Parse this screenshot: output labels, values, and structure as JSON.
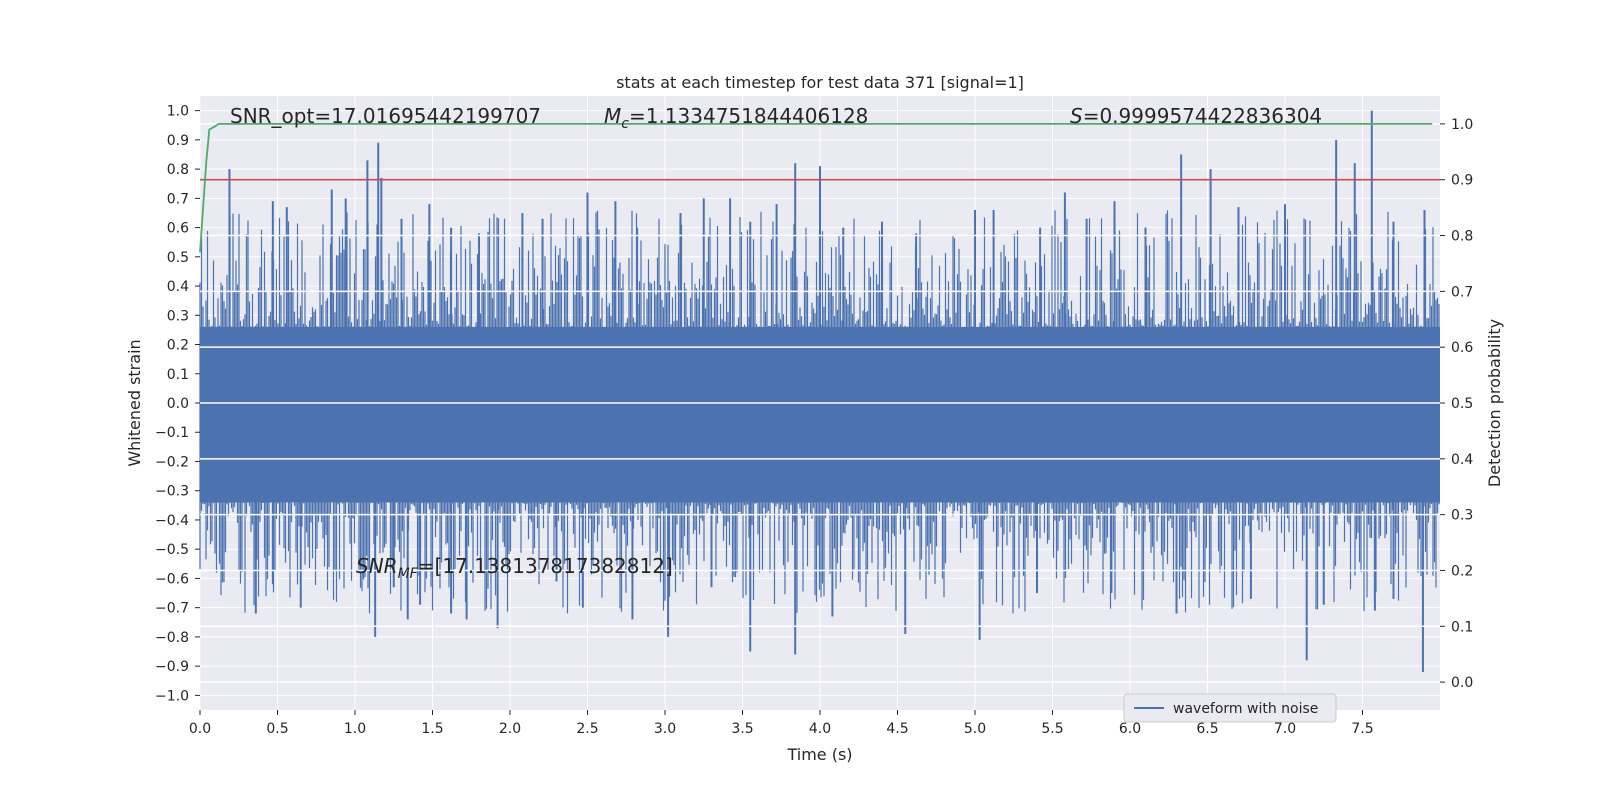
{
  "chart_data": {
    "type": "line",
    "title": "stats at each timestep for test data 371 [signal=1]",
    "xlabel": "Time (s)",
    "ylabel": "Whitened strain",
    "y2label": "Detection probability",
    "xlim": [
      0.0,
      8.0
    ],
    "ylim": [
      -1.05,
      1.05
    ],
    "y2lim": [
      -0.05,
      1.05
    ],
    "x_ticks": [
      0.0,
      0.5,
      1.0,
      1.5,
      2.0,
      2.5,
      3.0,
      3.5,
      4.0,
      4.5,
      5.0,
      5.5,
      6.0,
      6.5,
      7.0,
      7.5
    ],
    "x_tick_labels": [
      "0.0",
      "0.5",
      "1.0",
      "1.5",
      "2.0",
      "2.5",
      "3.0",
      "3.5",
      "4.0",
      "4.5",
      "5.0",
      "5.5",
      "6.0",
      "6.5",
      "7.0",
      "7.5"
    ],
    "y_ticks": [
      1.0,
      0.9,
      0.8,
      0.7,
      0.6,
      0.5,
      0.4,
      0.3,
      0.2,
      0.1,
      0.0,
      -0.1,
      -0.2,
      -0.3,
      -0.4,
      -0.5,
      -0.6,
      -0.7,
      -0.8,
      -0.9,
      -1.0
    ],
    "y_tick_labels": [
      "1.0",
      "0.9",
      "0.8",
      "0.7",
      "0.6",
      "0.5",
      "0.4",
      "0.3",
      "0.2",
      "0.1",
      "0.0",
      "−0.1",
      "−0.2",
      "−0.3",
      "−0.4",
      "−0.5",
      "−0.6",
      "−0.7",
      "−0.8",
      "−0.9",
      "−1.0"
    ],
    "y2_ticks": [
      1.0,
      0.9,
      0.8,
      0.7,
      0.6,
      0.5,
      0.4,
      0.3,
      0.2,
      0.1,
      0.0
    ],
    "y2_tick_labels": [
      "1.0",
      "0.9",
      "0.8",
      "0.7",
      "0.6",
      "0.5",
      "0.4",
      "0.3",
      "0.2",
      "0.1",
      "0.0"
    ],
    "grid": true,
    "legend": {
      "placement": "lower-right",
      "entries": [
        "waveform with noise"
      ]
    },
    "series": [
      {
        "name": "waveform with noise",
        "color": "#4c72b0",
        "axis": "left",
        "band_lower": -0.34,
        "band_upper": 0.26,
        "peaks_up": [
          [
            0.19,
            0.8
          ],
          [
            0.47,
            0.69
          ],
          [
            0.56,
            0.67
          ],
          [
            0.85,
            0.73
          ],
          [
            0.94,
            0.7
          ],
          [
            1.08,
            0.83
          ],
          [
            1.15,
            0.89
          ],
          [
            1.17,
            0.77
          ],
          [
            1.3,
            0.63
          ],
          [
            1.48,
            0.68
          ],
          [
            1.62,
            0.6
          ],
          [
            1.8,
            0.58
          ],
          [
            2.08,
            0.65
          ],
          [
            2.21,
            0.63
          ],
          [
            2.5,
            0.72
          ],
          [
            2.68,
            0.69
          ],
          [
            2.82,
            0.6
          ],
          [
            3.1,
            0.65
          ],
          [
            3.25,
            0.7
          ],
          [
            3.42,
            0.7
          ],
          [
            3.55,
            0.62
          ],
          [
            3.72,
            0.68
          ],
          [
            3.84,
            0.82
          ],
          [
            4.0,
            0.81
          ],
          [
            4.15,
            0.6
          ],
          [
            4.4,
            0.62
          ],
          [
            4.62,
            0.58
          ],
          [
            5.0,
            0.66
          ],
          [
            5.12,
            0.66
          ],
          [
            5.42,
            0.6
          ],
          [
            5.58,
            0.72
          ],
          [
            5.72,
            0.63
          ],
          [
            5.9,
            0.69
          ],
          [
            6.1,
            0.6
          ],
          [
            6.33,
            0.85
          ],
          [
            6.52,
            0.8
          ],
          [
            6.7,
            0.67
          ],
          [
            7.0,
            0.68
          ],
          [
            7.33,
            0.9
          ],
          [
            7.45,
            0.82
          ],
          [
            7.56,
            1.0
          ],
          [
            7.7,
            0.62
          ],
          [
            7.9,
            0.66
          ]
        ],
        "peaks_down": [
          [
            0.36,
            -0.72
          ],
          [
            0.47,
            -0.62
          ],
          [
            0.65,
            -0.7
          ],
          [
            1.13,
            -0.8
          ],
          [
            1.25,
            -0.63
          ],
          [
            1.34,
            -0.74
          ],
          [
            1.42,
            -0.69
          ],
          [
            1.62,
            -0.72
          ],
          [
            1.72,
            -0.74
          ],
          [
            1.92,
            -0.77
          ],
          [
            2.3,
            -0.61
          ],
          [
            2.47,
            -0.7
          ],
          [
            2.79,
            -0.74
          ],
          [
            3.02,
            -0.8
          ],
          [
            3.3,
            -0.63
          ],
          [
            3.55,
            -0.85
          ],
          [
            3.84,
            -0.86
          ],
          [
            4.08,
            -0.73
          ],
          [
            4.55,
            -0.79
          ],
          [
            5.03,
            -0.81
          ],
          [
            5.4,
            -0.65
          ],
          [
            5.88,
            -0.65
          ],
          [
            6.3,
            -0.72
          ],
          [
            6.78,
            -0.67
          ],
          [
            7.14,
            -0.88
          ],
          [
            7.25,
            -0.69
          ],
          [
            7.58,
            -0.71
          ],
          [
            7.7,
            -0.67
          ],
          [
            7.89,
            -0.92
          ]
        ]
      },
      {
        "name": "",
        "color": "#55a868",
        "axis": "right",
        "x": [
          0.0,
          0.02,
          0.04,
          0.06,
          0.08,
          0.1,
          0.12,
          0.2,
          1.0,
          2.0,
          3.0,
          4.0,
          5.0,
          6.0,
          7.0,
          7.95
        ],
        "values": [
          0.77,
          0.85,
          0.93,
          0.99,
          0.993,
          0.996,
          1.0,
          1.0,
          1.0,
          1.0,
          1.0,
          1.0,
          1.0,
          1.0,
          1.0,
          1.0
        ]
      }
    ],
    "threshold_line": {
      "color": "#c44e52",
      "axis": "right",
      "value": 0.9
    },
    "annotations": [
      {
        "text": "SNR_opt=17.01695442199707"
      },
      {
        "prefix": "M",
        "subscript": "c",
        "suffix": "=1.1334751844406128"
      },
      {
        "prefix": "S",
        "suffix": "=0.9999574422836304"
      },
      {
        "prefix": "SNR",
        "subscript": "MF",
        "suffix": "=[17.138137817382812]"
      }
    ]
  }
}
